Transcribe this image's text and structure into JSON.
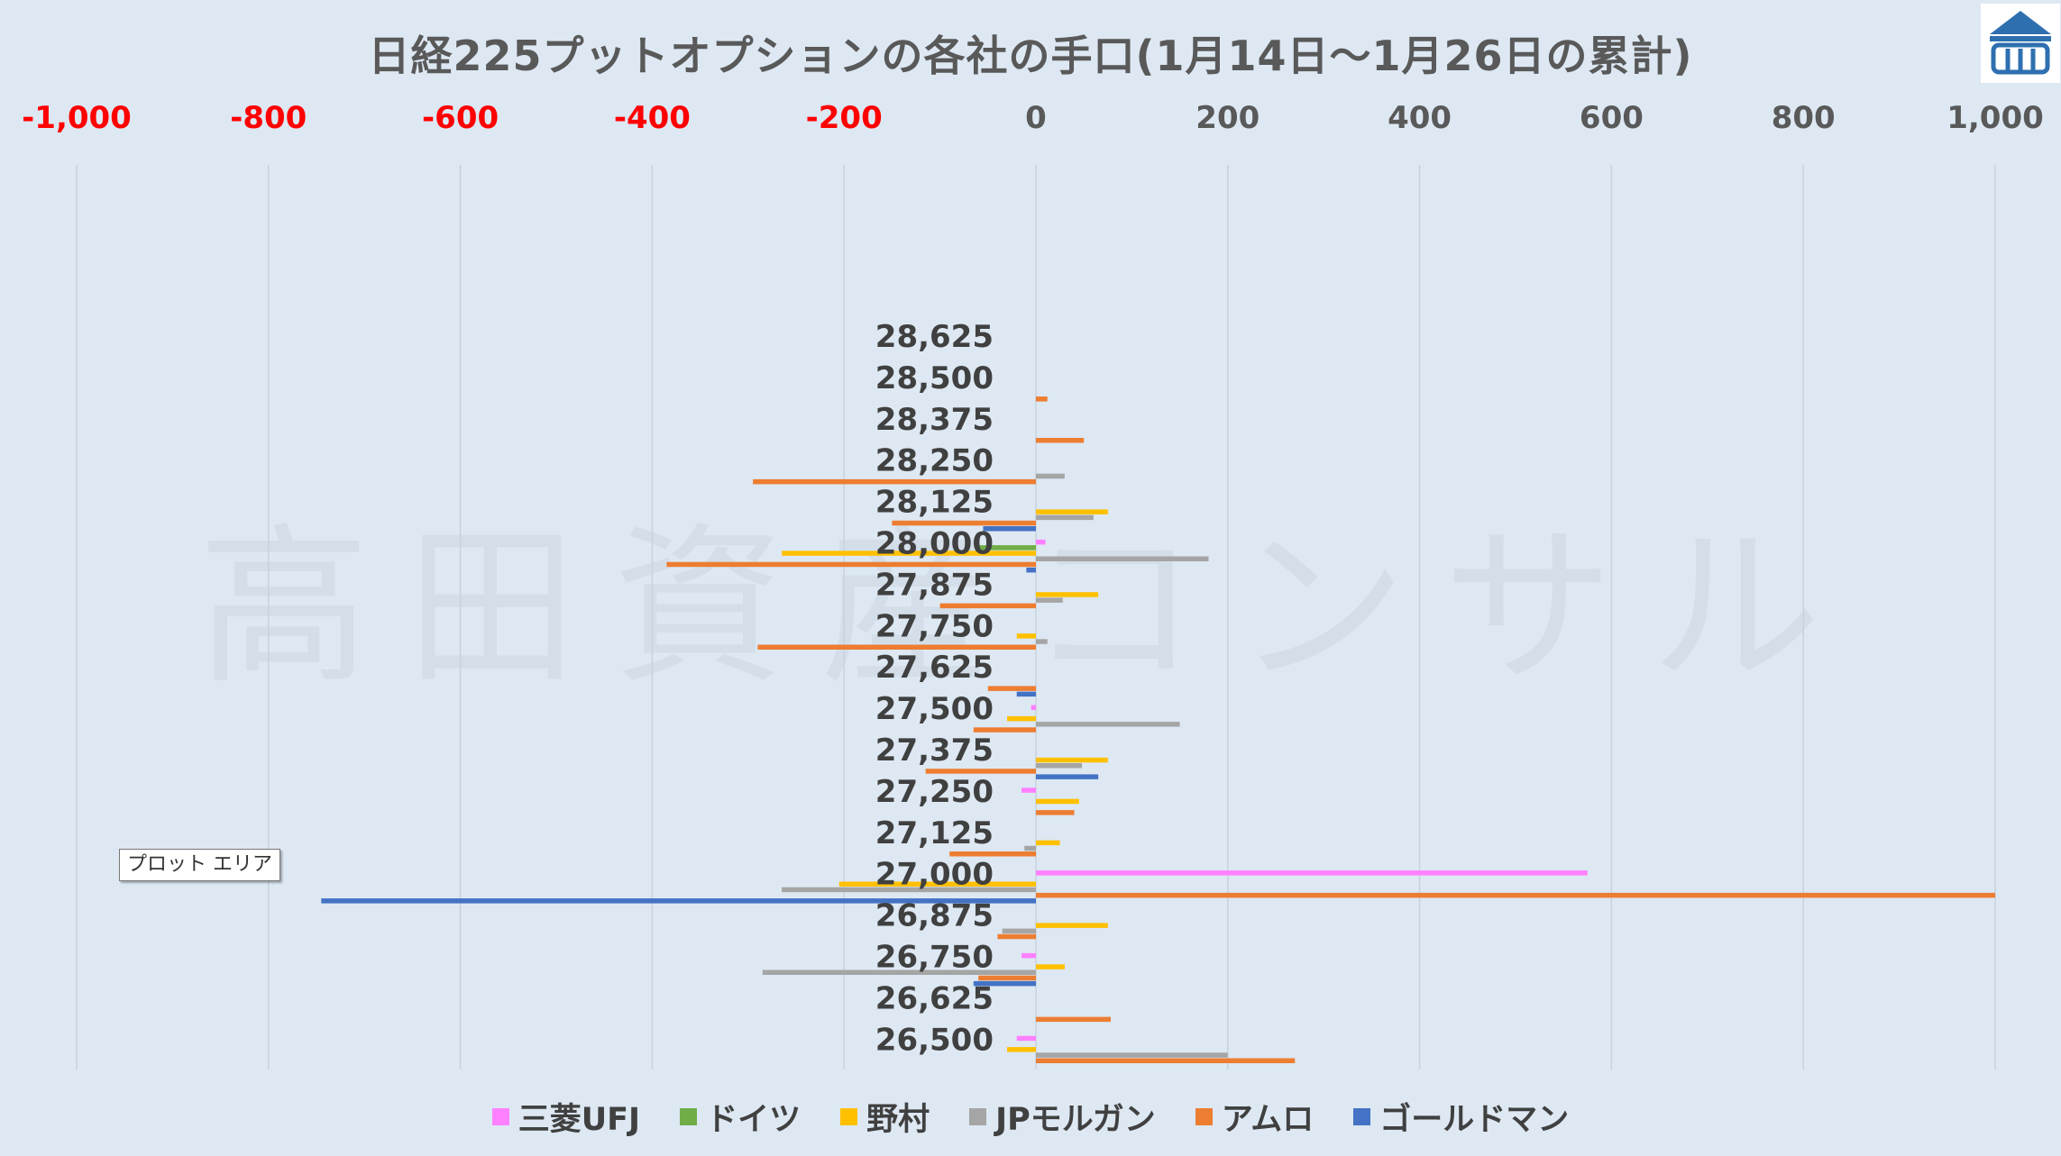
{
  "title": "日経225プットオプションの各社の手口(1月14日～1月26日の累計)",
  "watermark": "高田資産コンサル",
  "tooltip": "プロット エリア",
  "chart_data": {
    "type": "bar",
    "orientation": "horizontal",
    "title": "日経225プットオプションの各社の手口(1月14日～1月26日の累計)",
    "xlim": [
      -1000,
      1000
    ],
    "xticks": [
      {
        "value": -1000,
        "label": "-1,000",
        "color": "#ff0000"
      },
      {
        "value": -800,
        "label": "-800",
        "color": "#ff0000"
      },
      {
        "value": -600,
        "label": "-600",
        "color": "#ff0000"
      },
      {
        "value": -400,
        "label": "-400",
        "color": "#ff0000"
      },
      {
        "value": -200,
        "label": "-200",
        "color": "#ff0000"
      },
      {
        "value": 0,
        "label": "0",
        "color": "#595959"
      },
      {
        "value": 200,
        "label": "200",
        "color": "#595959"
      },
      {
        "value": 400,
        "label": "400",
        "color": "#595959"
      },
      {
        "value": 600,
        "label": "600",
        "color": "#595959"
      },
      {
        "value": 800,
        "label": "800",
        "color": "#595959"
      },
      {
        "value": 1000,
        "label": "1,000",
        "color": "#595959"
      }
    ],
    "grid": true,
    "legend_position": "bottom",
    "categories": [
      "28,625",
      "28,500",
      "28,375",
      "28,250",
      "28,125",
      "28,000",
      "27,875",
      "27,750",
      "27,625",
      "27,500",
      "27,375",
      "27,250",
      "27,125",
      "27,000",
      "26,875",
      "26,750",
      "26,625",
      "26,500"
    ],
    "series": [
      {
        "name": "三菱UFJ",
        "color": "#ff80ff",
        "values": [
          0,
          0,
          0,
          0,
          0,
          10,
          0,
          0,
          0,
          -5,
          0,
          -15,
          0,
          575,
          0,
          -15,
          0,
          -20
        ]
      },
      {
        "name": "ドイツ",
        "color": "#70ad47",
        "values": [
          0,
          0,
          0,
          0,
          0,
          -60,
          0,
          0,
          0,
          0,
          0,
          0,
          0,
          0,
          0,
          0,
          0,
          0
        ]
      },
      {
        "name": "野村",
        "color": "#ffc000",
        "values": [
          0,
          0,
          0,
          0,
          75,
          -265,
          65,
          -20,
          0,
          -30,
          75,
          45,
          25,
          -205,
          75,
          30,
          0,
          -30
        ]
      },
      {
        "name": "JPモルガン",
        "color": "#a5a5a5",
        "values": [
          0,
          0,
          0,
          30,
          60,
          180,
          28,
          12,
          0,
          150,
          48,
          0,
          -12,
          -265,
          -35,
          -285,
          0,
          200
        ]
      },
      {
        "name": "アムロ",
        "color": "#ed7d31",
        "values": [
          0,
          12,
          50,
          -295,
          -150,
          -385,
          -100,
          -290,
          -50,
          -65,
          -115,
          40,
          -90,
          1000,
          -40,
          -60,
          78,
          270
        ]
      },
      {
        "name": "ゴールドマン",
        "color": "#4472c4",
        "values": [
          0,
          0,
          0,
          0,
          -55,
          -10,
          0,
          0,
          -20,
          0,
          65,
          0,
          0,
          -745,
          0,
          -65,
          0,
          0
        ]
      }
    ]
  }
}
